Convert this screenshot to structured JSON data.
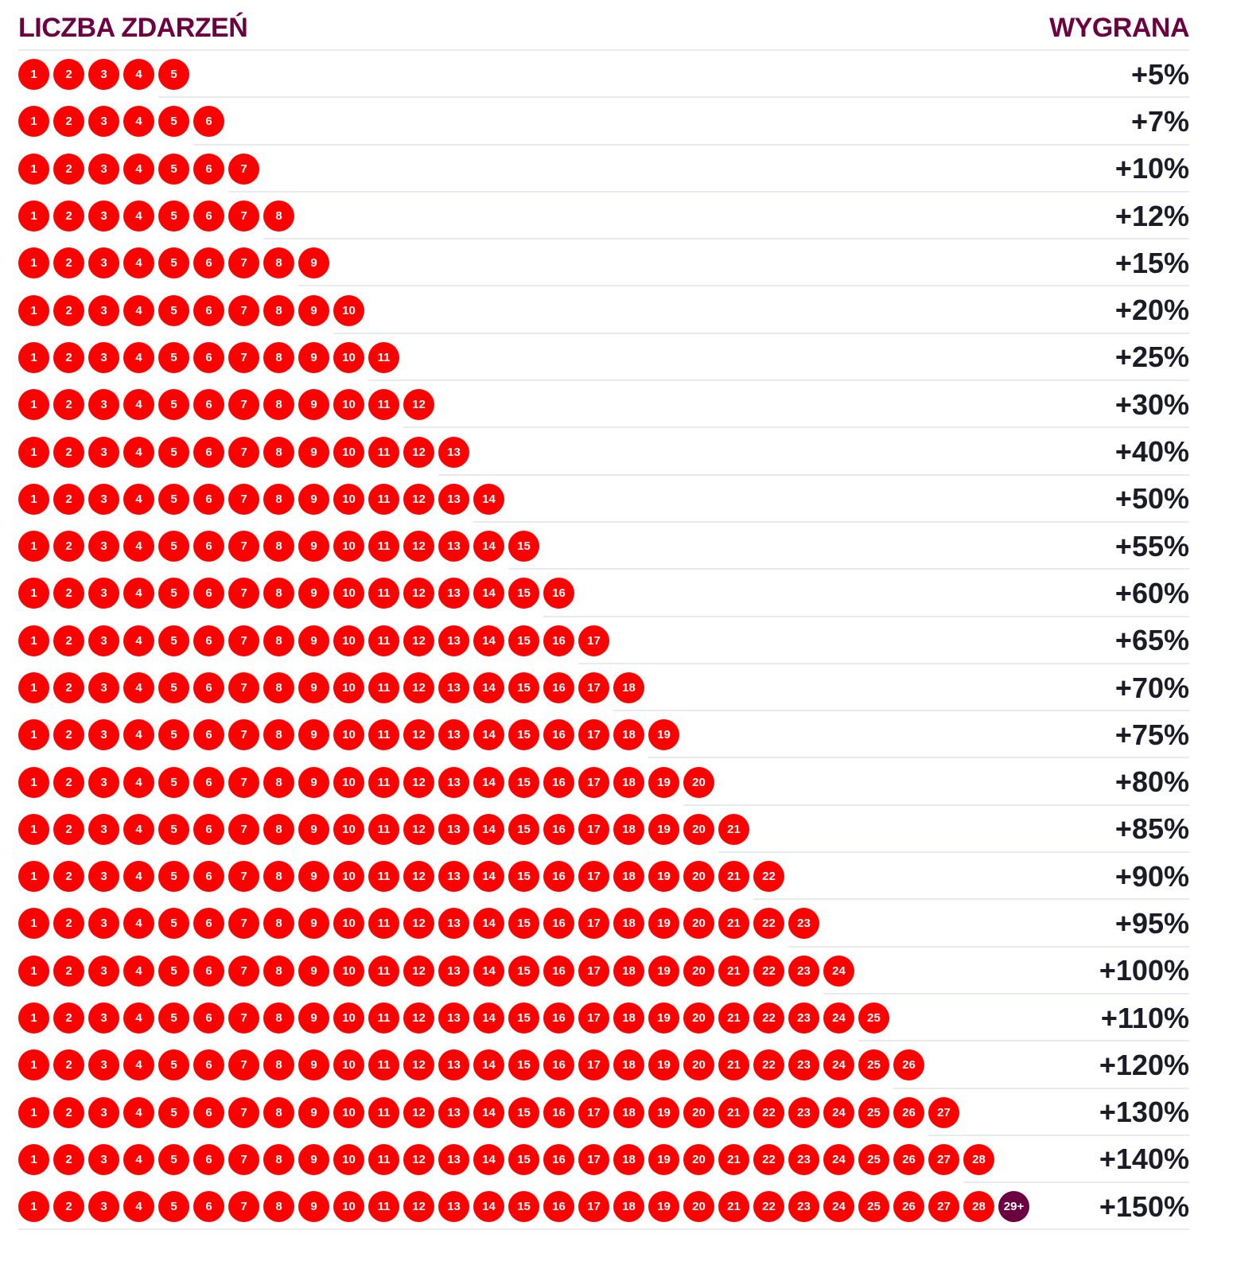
{
  "header": {
    "left": "LICZBA ZDARZEŃ",
    "right": "WYGRANA"
  },
  "colors": {
    "circle": "#ff0000",
    "last_circle": "#6c0040",
    "title": "#6c0040"
  },
  "rows": [
    {
      "count": 5,
      "bonus": "+5%"
    },
    {
      "count": 6,
      "bonus": "+7%"
    },
    {
      "count": 7,
      "bonus": "+10%"
    },
    {
      "count": 8,
      "bonus": "+12%"
    },
    {
      "count": 9,
      "bonus": "+15%"
    },
    {
      "count": 10,
      "bonus": "+20%"
    },
    {
      "count": 11,
      "bonus": "+25%"
    },
    {
      "count": 12,
      "bonus": "+30%"
    },
    {
      "count": 13,
      "bonus": "+40%"
    },
    {
      "count": 14,
      "bonus": "+50%"
    },
    {
      "count": 15,
      "bonus": "+55%"
    },
    {
      "count": 16,
      "bonus": "+60%"
    },
    {
      "count": 17,
      "bonus": "+65%"
    },
    {
      "count": 18,
      "bonus": "+70%"
    },
    {
      "count": 19,
      "bonus": "+75%"
    },
    {
      "count": 20,
      "bonus": "+80%"
    },
    {
      "count": 21,
      "bonus": "+85%"
    },
    {
      "count": 22,
      "bonus": "+90%"
    },
    {
      "count": 23,
      "bonus": "+95%"
    },
    {
      "count": 24,
      "bonus": "+100%"
    },
    {
      "count": 25,
      "bonus": "+110%"
    },
    {
      "count": 26,
      "bonus": "+120%"
    },
    {
      "count": 27,
      "bonus": "+130%"
    },
    {
      "count": 28,
      "bonus": "+140%"
    },
    {
      "count": 29,
      "bonus": "+150%",
      "last_label": "29+"
    }
  ]
}
